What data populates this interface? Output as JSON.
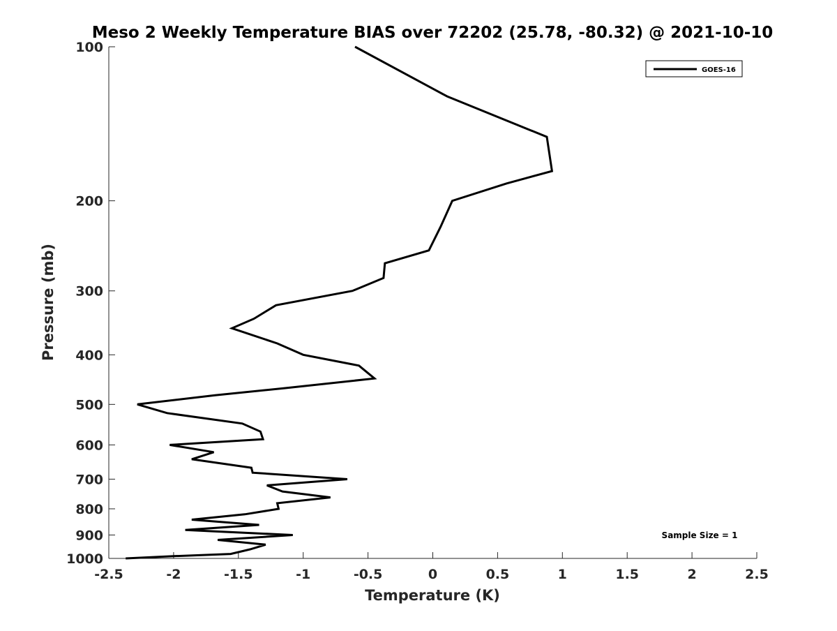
{
  "chart_data": {
    "type": "line",
    "title": "Meso 2 Weekly Temperature BIAS over 72202 (25.78, -80.32) @ 2021-10-10",
    "xlabel": "Temperature (K)",
    "ylabel": "Pressure (mb)",
    "xlim": [
      -2.5,
      2.5
    ],
    "ylim": [
      100,
      1000
    ],
    "y_scale": "log",
    "y_reversed": true,
    "grid": false,
    "x_ticks": [
      -2.5,
      -2,
      -1.5,
      -1,
      -0.5,
      0,
      0.5,
      1,
      1.5,
      2,
      2.5
    ],
    "x_tick_labels": [
      "-2.5",
      "-2",
      "-1.5",
      "-1",
      "-0.5",
      "0",
      "0.5",
      "1",
      "1.5",
      "2",
      "2.5"
    ],
    "y_ticks": [
      100,
      200,
      300,
      400,
      500,
      600,
      700,
      800,
      900,
      1000
    ],
    "y_tick_labels": [
      "100",
      "200",
      "300",
      "400",
      "500",
      "600",
      "700",
      "800",
      "900",
      "1000"
    ],
    "legend_position": "top-right",
    "series": [
      {
        "name": "GOES-16",
        "color": "#000000",
        "points": [
          {
            "x": -0.6,
            "p": 100
          },
          {
            "x": 0.11,
            "p": 125
          },
          {
            "x": 0.88,
            "p": 150
          },
          {
            "x": 0.92,
            "p": 175
          },
          {
            "x": 0.57,
            "p": 185
          },
          {
            "x": 0.15,
            "p": 200
          },
          {
            "x": 0.06,
            "p": 225
          },
          {
            "x": -0.03,
            "p": 250
          },
          {
            "x": -0.37,
            "p": 265
          },
          {
            "x": -0.38,
            "p": 283
          },
          {
            "x": -0.62,
            "p": 300
          },
          {
            "x": -1.21,
            "p": 320
          },
          {
            "x": -1.38,
            "p": 340
          },
          {
            "x": -1.55,
            "p": 355
          },
          {
            "x": -1.2,
            "p": 380
          },
          {
            "x": -1.0,
            "p": 400
          },
          {
            "x": -0.57,
            "p": 420
          },
          {
            "x": -0.45,
            "p": 445
          },
          {
            "x": -1.15,
            "p": 465
          },
          {
            "x": -1.68,
            "p": 480
          },
          {
            "x": -2.28,
            "p": 500
          },
          {
            "x": -2.05,
            "p": 520
          },
          {
            "x": -1.47,
            "p": 545
          },
          {
            "x": -1.33,
            "p": 565
          },
          {
            "x": -1.31,
            "p": 585
          },
          {
            "x": -2.03,
            "p": 600
          },
          {
            "x": -1.69,
            "p": 620
          },
          {
            "x": -1.86,
            "p": 640
          },
          {
            "x": -1.4,
            "p": 665
          },
          {
            "x": -1.39,
            "p": 680
          },
          {
            "x": -0.66,
            "p": 700
          },
          {
            "x": -1.28,
            "p": 720
          },
          {
            "x": -1.16,
            "p": 740
          },
          {
            "x": -0.79,
            "p": 760
          },
          {
            "x": -1.2,
            "p": 780
          },
          {
            "x": -1.19,
            "p": 800
          },
          {
            "x": -1.45,
            "p": 820
          },
          {
            "x": -1.86,
            "p": 840
          },
          {
            "x": -1.34,
            "p": 860
          },
          {
            "x": -1.91,
            "p": 880
          },
          {
            "x": -1.08,
            "p": 900
          },
          {
            "x": -1.66,
            "p": 920
          },
          {
            "x": -1.29,
            "p": 940
          },
          {
            "x": -1.41,
            "p": 960
          },
          {
            "x": -1.56,
            "p": 980
          },
          {
            "x": -2.0,
            "p": 990
          },
          {
            "x": -2.37,
            "p": 1000
          }
        ]
      }
    ],
    "annotations": [
      {
        "text": "Sample Size = 1",
        "position": "bottom-right"
      }
    ]
  }
}
